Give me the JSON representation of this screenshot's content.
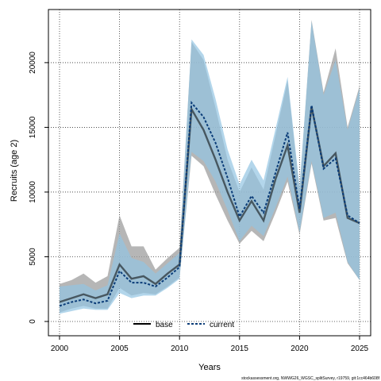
{
  "chart_data": {
    "type": "line",
    "xlabel": "Years",
    "ylabel": "Recruits (age 2)",
    "footnote": "stockassessment.org, NWWG26_WGSC_splitSurvey, r19759, git:1cc464b608f",
    "xlim": [
      2000,
      2025
    ],
    "ylim": [
      0,
      23000
    ],
    "xticks": [
      2000,
      2005,
      2010,
      2015,
      2020,
      2025
    ],
    "yticks": [
      0,
      5000,
      10000,
      15000,
      20000
    ],
    "grid": true,
    "legend_position": "bottom-center",
    "x": [
      2000,
      2001,
      2002,
      2003,
      2004,
      2005,
      2006,
      2007,
      2008,
      2009,
      2010,
      2011,
      2012,
      2013,
      2014,
      2015,
      2016,
      2017,
      2018,
      2019,
      2020,
      2021,
      2022,
      2023,
      2024,
      2025
    ],
    "series": [
      {
        "name": "base",
        "color": "#000000",
        "band_color": "#9e9e9e",
        "line_style": "solid",
        "values": [
          1500,
          1800,
          2100,
          1800,
          2100,
          4400,
          3300,
          3500,
          2900,
          3700,
          4400,
          16400,
          14800,
          12500,
          10000,
          7800,
          9300,
          7800,
          11000,
          13600,
          8400,
          16600,
          12000,
          13000,
          8000,
          7600
        ],
        "lower": [
          700,
          1000,
          1200,
          1000,
          1000,
          2600,
          2000,
          2200,
          2100,
          2700,
          3400,
          12800,
          12000,
          9800,
          7800,
          6000,
          7000,
          6200,
          8400,
          10800,
          6700,
          12200,
          7800,
          8000,
          4500,
          3200
        ],
        "upper": [
          2900,
          3200,
          3700,
          3000,
          3500,
          8200,
          5800,
          5800,
          4000,
          4900,
          5700,
          21600,
          20200,
          16500,
          12500,
          10000,
          11900,
          10200,
          14400,
          18600,
          10200,
          23300,
          17700,
          21100,
          15000,
          18200
        ]
      },
      {
        "name": "current",
        "color": "#0a3c78",
        "band_color": "#93c5e3",
        "line_style": "dashed",
        "values": [
          1200,
          1500,
          1700,
          1400,
          1600,
          3900,
          3000,
          3000,
          2700,
          3400,
          4200,
          16900,
          15800,
          13800,
          11100,
          8100,
          9700,
          8400,
          11500,
          14600,
          8700,
          16700,
          11800,
          12600,
          8200,
          7600
        ],
        "lower": [
          600,
          800,
          1000,
          900,
          900,
          2200,
          1800,
          2000,
          2000,
          2600,
          3300,
          13100,
          12400,
          10800,
          8600,
          6200,
          7400,
          6600,
          8800,
          11200,
          6900,
          12400,
          8000,
          8400,
          4600,
          3200
        ],
        "upper": [
          2700,
          2800,
          2900,
          2400,
          2800,
          6800,
          4900,
          4600,
          3700,
          4500,
          5300,
          21800,
          20600,
          17200,
          13300,
          10600,
          12500,
          10900,
          14900,
          18900,
          10400,
          23200,
          17500,
          20200,
          14800,
          18000
        ]
      }
    ]
  }
}
